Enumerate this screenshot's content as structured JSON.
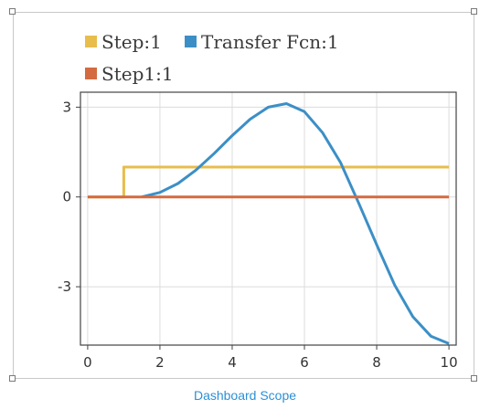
{
  "block": {
    "caption": "Dashboard Scope"
  },
  "colors": {
    "step": "#e8bd4c",
    "transfer_fcn": "#3c8fc6",
    "step1": "#d46a3f",
    "grid": "#dcdcdc",
    "axis": "#444444",
    "caption": "#2b8fd6"
  },
  "chart_data": {
    "type": "line",
    "legend_placement": "top-left",
    "grid": true,
    "xlim": [
      -0.2,
      10.2
    ],
    "ylim": [
      -4.95,
      3.5
    ],
    "x_ticks": [
      0,
      2,
      4,
      6,
      8,
      10
    ],
    "y_ticks": [
      -3,
      0,
      3
    ],
    "series": [
      {
        "name": "Step:1",
        "color": "#e8bd4c",
        "x": [
          0,
          1,
          1,
          10
        ],
        "y": [
          0,
          0,
          1,
          1
        ]
      },
      {
        "name": "Transfer Fcn:1",
        "color": "#3c8fc6",
        "x": [
          1.5,
          2,
          2.5,
          3,
          3.5,
          4,
          4.5,
          5,
          5.5,
          6,
          6.5,
          7,
          7.5,
          8,
          8.5,
          9,
          9.5,
          10
        ],
        "y": [
          0,
          0.15,
          0.45,
          0.9,
          1.45,
          2.05,
          2.6,
          3.0,
          3.12,
          2.85,
          2.15,
          1.15,
          -0.2,
          -1.6,
          -2.95,
          -4.0,
          -4.65,
          -4.9
        ]
      },
      {
        "name": "Step1:1",
        "color": "#d46a3f",
        "x": [
          0,
          10
        ],
        "y": [
          0,
          0
        ]
      }
    ]
  }
}
